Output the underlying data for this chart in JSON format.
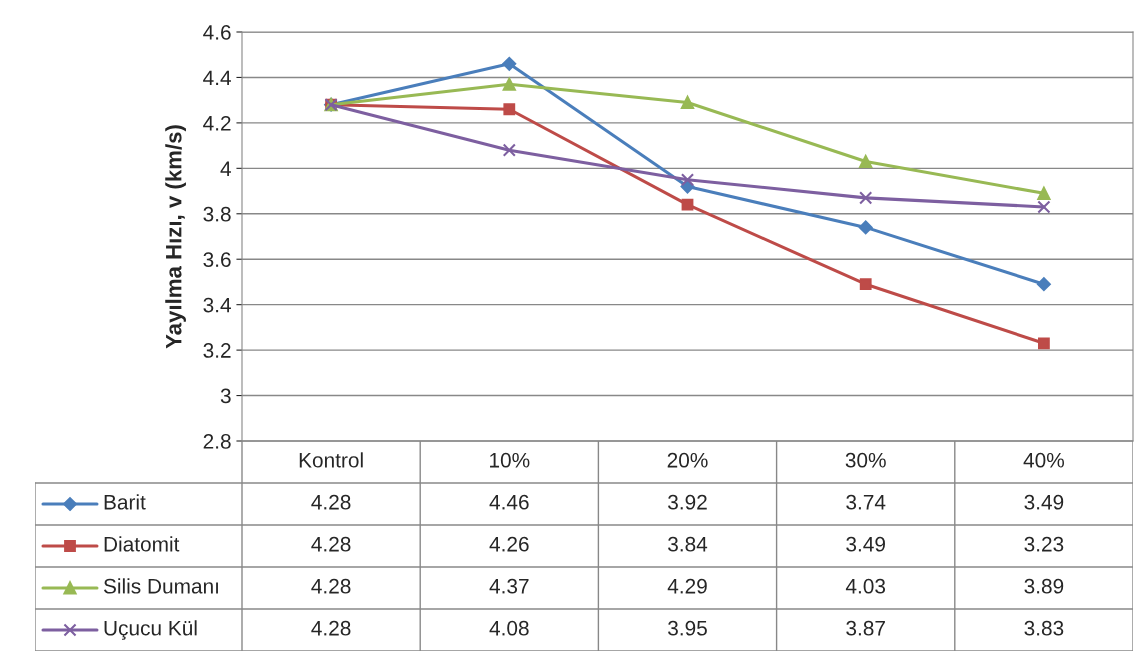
{
  "chart_data": {
    "type": "line",
    "ylabel": "Yayılma Hızı, v (km/s)",
    "categories": [
      "Kontrol",
      "10%",
      "20%",
      "30%",
      "40%"
    ],
    "series": [
      {
        "name": "Barit",
        "color": "#4a7ebb",
        "marker": "diamond",
        "values": [
          4.28,
          4.46,
          3.92,
          3.74,
          3.49
        ]
      },
      {
        "name": "Diatomit",
        "color": "#be4b48",
        "marker": "square",
        "values": [
          4.28,
          4.26,
          3.84,
          3.49,
          3.23
        ]
      },
      {
        "name": "Silis Dumanı",
        "color": "#98b954",
        "marker": "triangle",
        "values": [
          4.28,
          4.37,
          4.29,
          4.03,
          3.89
        ]
      },
      {
        "name": "Uçucu Kül",
        "color": "#7d5fa0",
        "marker": "cross",
        "values": [
          4.28,
          4.08,
          3.95,
          3.87,
          3.83
        ]
      }
    ],
    "ylim": [
      2.8,
      4.6
    ],
    "yticks": [
      2.8,
      3,
      3.2,
      3.4,
      3.6,
      3.8,
      4,
      4.2,
      4.4,
      4.6
    ],
    "grid": "y",
    "legend": "bottom",
    "data_labels": true
  }
}
